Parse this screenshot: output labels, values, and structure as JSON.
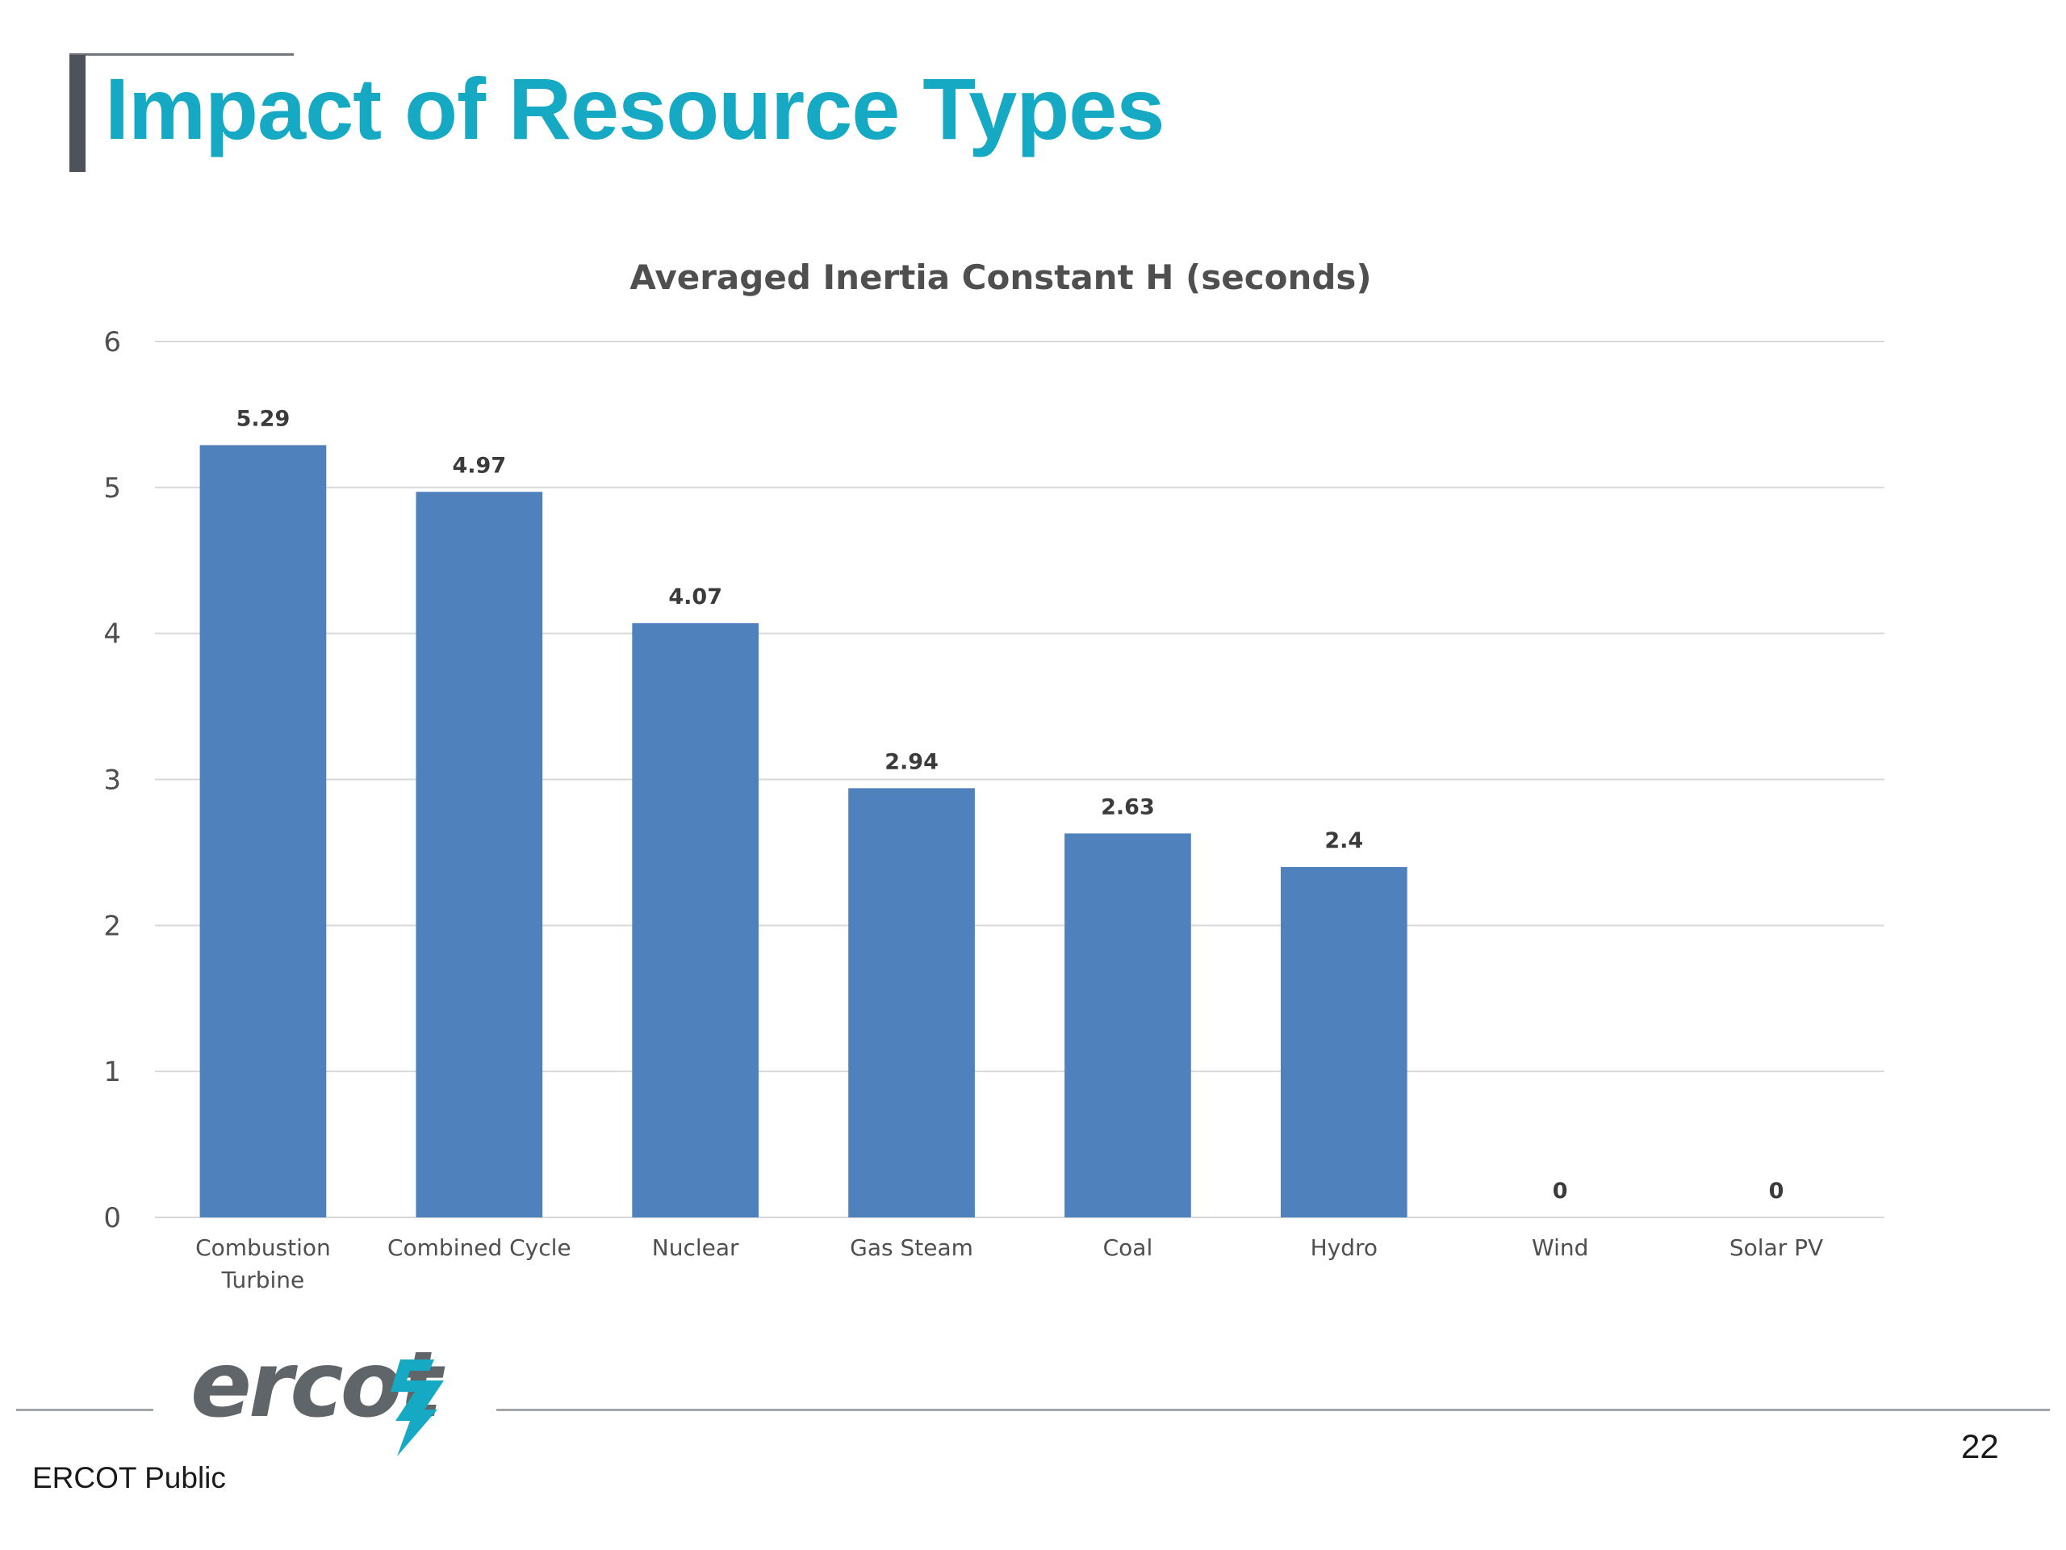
{
  "slide": {
    "title": "Impact of Resource Types",
    "footer_label": "ERCOT Public",
    "page_number": "22",
    "logo_text": "ercot"
  },
  "colors": {
    "title": "#15a9c4",
    "bar": "#4f81bd",
    "logo_icon": "#15a9c4"
  },
  "chart_data": {
    "type": "bar",
    "title": "Averaged Inertia Constant H (seconds)",
    "xlabel": "",
    "ylabel": "",
    "categories": [
      [
        "Combustion",
        "Turbine"
      ],
      [
        "Combined Cycle"
      ],
      [
        "Nuclear"
      ],
      [
        "Gas Steam"
      ],
      [
        "Coal"
      ],
      [
        "Hydro"
      ],
      [
        "Wind"
      ],
      [
        "Solar PV"
      ]
    ],
    "values": [
      5.29,
      4.97,
      4.07,
      2.94,
      2.63,
      2.4,
      0,
      0
    ],
    "ylim": [
      0,
      6
    ],
    "yticks": [
      0,
      1,
      2,
      3,
      4,
      5,
      6
    ],
    "grid": true,
    "legend": "none",
    "data_labels": true
  }
}
